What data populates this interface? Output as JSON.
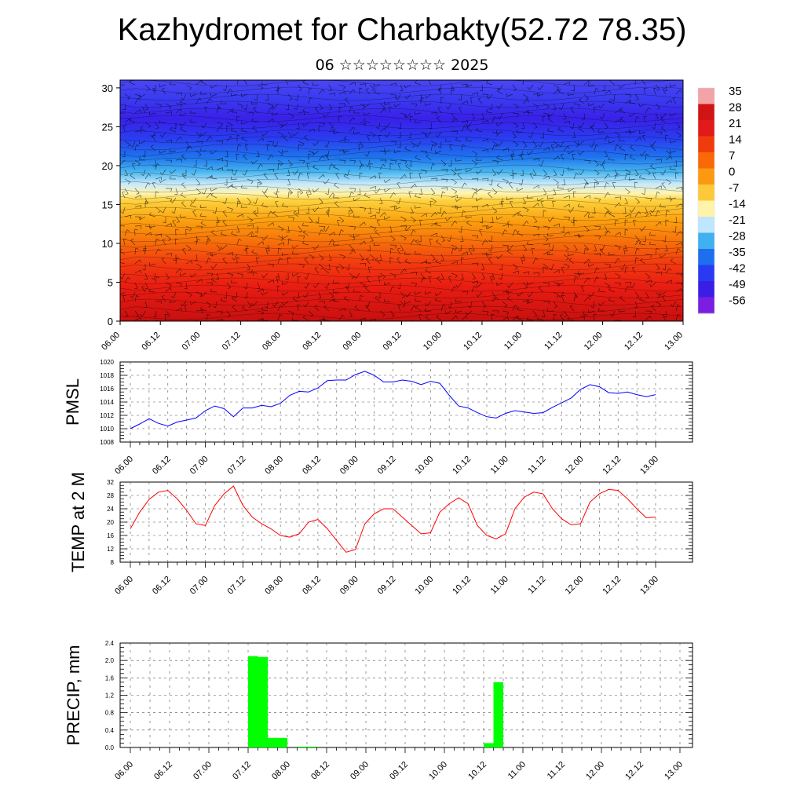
{
  "header": {
    "title": "Kazhydromet for Charbakty(52.72 78.35)",
    "subtitle": "06 ☆☆☆☆☆☆☆☆ 2025"
  },
  "chart_data": [
    {
      "type": "heatmap",
      "title": "Kazhydromet for Charbakty(52.72 78.35)",
      "ylabel": "",
      "ylim": [
        0,
        31
      ],
      "y_ticks": [
        0,
        5,
        10,
        15,
        20,
        25,
        30
      ],
      "x_ticks": [
        "06.00",
        "06.12",
        "07.00",
        "07.12",
        "08.00",
        "08.12",
        "09.00",
        "09.12",
        "10.00",
        "10.12",
        "11.00",
        "11.12",
        "12.00",
        "12.12",
        "13.00"
      ],
      "colorbar_labels": [
        "35",
        "28",
        "21",
        "14",
        "7",
        "0",
        "-7",
        "-14",
        "-21",
        "-28",
        "-35",
        "-42",
        "-49",
        "-56"
      ],
      "colorbar_colors": [
        "#f3a3a8",
        "#d11414",
        "#e21a1a",
        "#f03c0c",
        "#f86a08",
        "#fb9a10",
        "#fdc83a",
        "#fef3a8",
        "#bfe6ff",
        "#3fb0f0",
        "#1e6ff0",
        "#2a3af2",
        "#3a1ee8",
        "#7a1ee0"
      ],
      "grid": false,
      "legend": "right",
      "overlay": "wind barbs and contour lines"
    },
    {
      "type": "line",
      "ylabel": "PMSL",
      "ylim": [
        1008,
        1020
      ],
      "y_ticks": [
        1008,
        1010,
        1012,
        1014,
        1016,
        1018,
        1020
      ],
      "x_ticks": [
        "06.00",
        "06.12",
        "07.00",
        "07.12",
        "08.00",
        "08.12",
        "09.00",
        "09.12",
        "10.00",
        "10.12",
        "11.00",
        "11.12",
        "12.00",
        "12.12",
        "13.00"
      ],
      "x": [
        0,
        3,
        6,
        9,
        12,
        15,
        18,
        21,
        24,
        27,
        30,
        33,
        36,
        39,
        42,
        45,
        48,
        51,
        54,
        57,
        60,
        63,
        66,
        69,
        72,
        75,
        78,
        81,
        84,
        87,
        90,
        93,
        96,
        99,
        102,
        105,
        108,
        111,
        114,
        117,
        120,
        123,
        126,
        129,
        132,
        135,
        138,
        141,
        144,
        147,
        150,
        153,
        156,
        159,
        162,
        165,
        168
      ],
      "series": [
        {
          "color": "#0000ff",
          "values": [
            1010.0,
            1010.7,
            1011.5,
            1010.8,
            1010.4,
            1011.0,
            1011.3,
            1011.6,
            1012.7,
            1013.4,
            1013.0,
            1011.8,
            1013.1,
            1013.1,
            1013.5,
            1013.3,
            1013.8,
            1015.0,
            1015.6,
            1015.5,
            1016.1,
            1017.2,
            1017.3,
            1017.3,
            1018.1,
            1018.6,
            1018.0,
            1017.0,
            1017.0,
            1017.3,
            1017.1,
            1016.6,
            1017.1,
            1016.8,
            1015.0,
            1013.4,
            1013.1,
            1012.4,
            1011.8,
            1011.6,
            1012.3,
            1012.7,
            1012.5,
            1012.3,
            1012.4,
            1013.2,
            1013.9,
            1014.6,
            1015.9,
            1016.6,
            1016.3,
            1015.4,
            1015.3,
            1015.5,
            1015.1,
            1014.8,
            1015.1
          ]
        }
      ],
      "grid": true
    },
    {
      "type": "line",
      "ylabel": "TEMP at 2 M",
      "ylim": [
        8,
        32
      ],
      "y_ticks": [
        8,
        12,
        16,
        20,
        24,
        28,
        32
      ],
      "x_ticks": [
        "06.00",
        "06.12",
        "07.00",
        "07.12",
        "08.00",
        "08.12",
        "09.00",
        "09.12",
        "10.00",
        "10.12",
        "11.00",
        "11.12",
        "12.00",
        "12.12",
        "13.00"
      ],
      "x": [
        0,
        3,
        6,
        9,
        12,
        15,
        18,
        21,
        24,
        27,
        30,
        33,
        36,
        39,
        42,
        45,
        48,
        51,
        54,
        57,
        60,
        63,
        66,
        69,
        72,
        75,
        78,
        81,
        84,
        87,
        90,
        93,
        96,
        99,
        102,
        105,
        108,
        111,
        114,
        117,
        120,
        123,
        126,
        129,
        132,
        135,
        138,
        141,
        144,
        147,
        150,
        153,
        156,
        159,
        162,
        165,
        168
      ],
      "series": [
        {
          "color": "#ff0000",
          "values": [
            18.0,
            23.0,
            26.8,
            29.0,
            29.5,
            27.0,
            23.5,
            19.5,
            19.0,
            25.0,
            28.5,
            30.8,
            25.0,
            21.5,
            19.5,
            18.0,
            16.0,
            15.5,
            16.5,
            20.0,
            20.8,
            18.0,
            14.5,
            11.0,
            11.8,
            19.5,
            22.5,
            24.0,
            24.0,
            21.5,
            19.0,
            16.5,
            16.8,
            23.0,
            25.5,
            27.3,
            25.5,
            19.0,
            16.0,
            15.0,
            16.5,
            24.0,
            27.5,
            29.0,
            28.5,
            24.0,
            21.0,
            19.2,
            19.5,
            26.0,
            28.5,
            29.8,
            29.5,
            27.0,
            24.0,
            21.3,
            21.5
          ]
        }
      ],
      "grid": true
    },
    {
      "type": "bar",
      "ylabel": "PRECIP, mm",
      "ylim": [
        0,
        2.4
      ],
      "y_ticks": [
        "0.0",
        "0.4",
        "0.8",
        "1.2",
        "1.6",
        "2.0",
        "2.4"
      ],
      "x_ticks": [
        "06.00",
        "06.12",
        "07.00",
        "07.12",
        "08.00",
        "08.12",
        "09.00",
        "09.12",
        "10.00",
        "10.12",
        "11.00",
        "11.12",
        "12.00",
        "12.12",
        "13.00"
      ],
      "x": [
        36,
        39,
        42,
        45,
        51,
        54,
        108,
        111
      ],
      "values": [
        2.1,
        2.08,
        0.22,
        0.22,
        0.02,
        0.02,
        0.1,
        1.5
      ],
      "color": "#00ff00",
      "grid": true
    }
  ]
}
